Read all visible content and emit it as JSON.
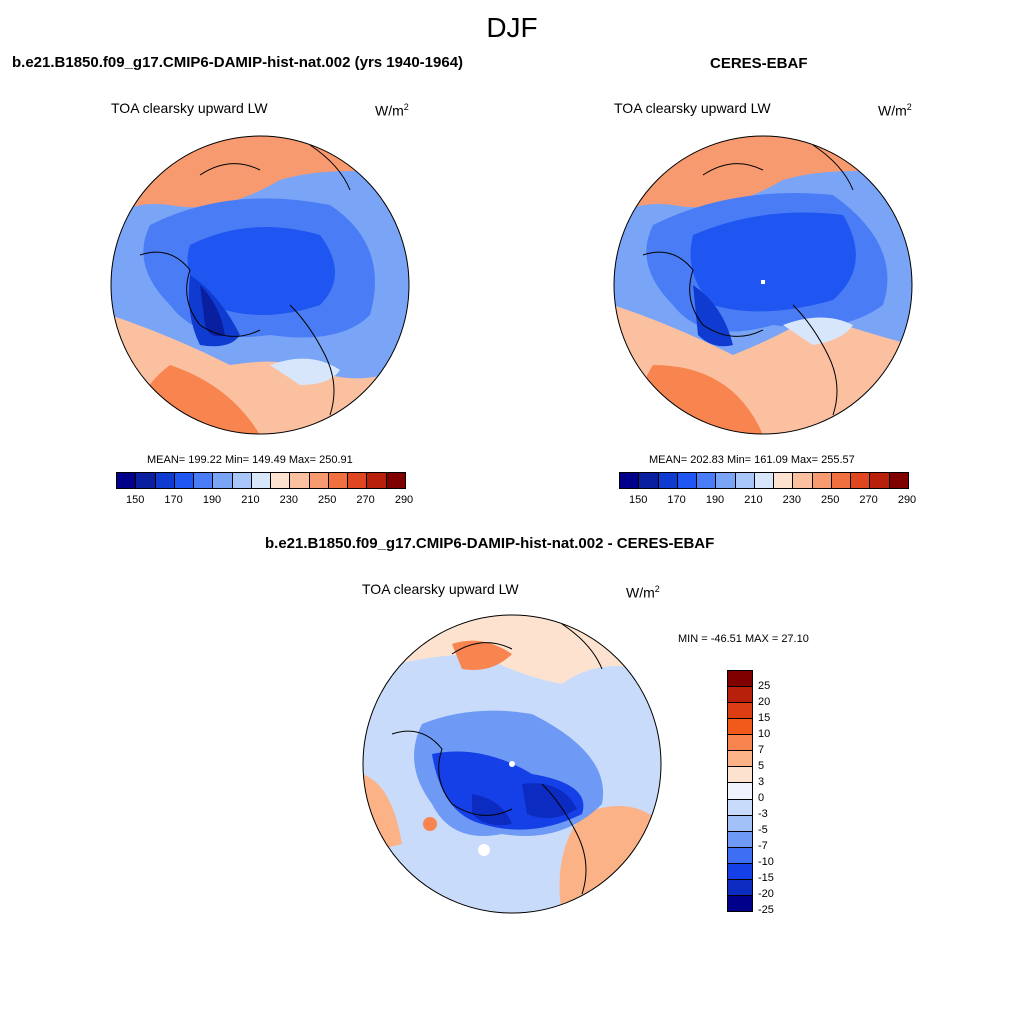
{
  "title": "DJF",
  "panels": {
    "left": {
      "title": "b.e21.B1850.f09_g17.CMIP6-DAMIP-hist-nat.002 (yrs 1940-1964)",
      "variable": "TOA clearsky upward LW",
      "units_base": "W/m",
      "units_exp": "2",
      "stats": "MEAN= 199.22  Min= 149.49  Max= 250.91"
    },
    "right": {
      "title": "CERES-EBAF",
      "variable": "TOA clearsky upward LW",
      "units_base": "W/m",
      "units_exp": "2",
      "stats": "MEAN= 202.83  Min= 161.09  Max= 255.57"
    },
    "diff": {
      "title": "b.e21.B1850.f09_g17.CMIP6-DAMIP-hist-nat.002 - CERES-EBAF",
      "variable": "TOA clearsky upward LW",
      "units_base": "W/m",
      "units_exp": "2",
      "stats": "MIN = -46.51 MAX =  27.10"
    }
  },
  "colorbar_main": {
    "colors": [
      "#00008b",
      "#0a1fa0",
      "#0f3bd0",
      "#1f55f0",
      "#4a7df5",
      "#7aa5f7",
      "#a9c6fa",
      "#d8e6fc",
      "#fde3cf",
      "#fbc0a0",
      "#f89a70",
      "#f0713f",
      "#e0461f",
      "#b8200c",
      "#800000"
    ],
    "labels": [
      "150",
      "170",
      "190",
      "210",
      "230",
      "250",
      "270",
      "290"
    ]
  },
  "colorbar_diff": {
    "colors": [
      "#800000",
      "#b8200c",
      "#dd3d12",
      "#f25a1c",
      "#f88450",
      "#fbb287",
      "#fde3cf",
      "#eef3fd",
      "#c9dbfb",
      "#a2c1f8",
      "#6e9af5",
      "#3d6ef3",
      "#1540e8",
      "#0c2bc0",
      "#00008b"
    ],
    "labels": [
      "25",
      "20",
      "15",
      "10",
      "7",
      "5",
      "3",
      "0",
      "-3",
      "-5",
      "-7",
      "-10",
      "-15",
      "-20",
      "-25"
    ]
  }
}
